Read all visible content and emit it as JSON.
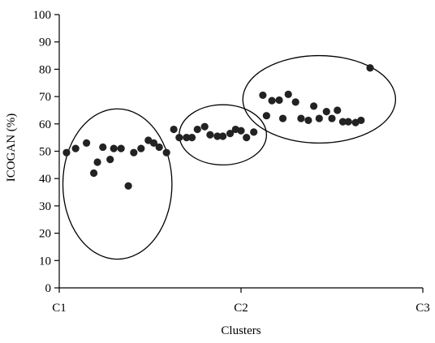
{
  "chart_data": {
    "type": "scatter",
    "title": "",
    "xlabel": "Clusters",
    "ylabel": "ICOGAN (%)",
    "ylim": [
      0,
      100
    ],
    "yticks": [
      0,
      10,
      20,
      30,
      40,
      50,
      60,
      70,
      80,
      90,
      100
    ],
    "xticks": [
      "C1",
      "C2",
      "C3"
    ],
    "xlim": [
      1,
      3
    ],
    "grid": false,
    "marker_color": "#222222",
    "series": [
      {
        "points": [
          {
            "x": 1.04,
            "y": 49.5
          },
          {
            "x": 1.09,
            "y": 51
          },
          {
            "x": 1.15,
            "y": 53
          },
          {
            "x": 1.19,
            "y": 42
          },
          {
            "x": 1.21,
            "y": 46
          },
          {
            "x": 1.24,
            "y": 51.5
          },
          {
            "x": 1.28,
            "y": 47
          },
          {
            "x": 1.3,
            "y": 51
          },
          {
            "x": 1.34,
            "y": 51
          },
          {
            "x": 1.38,
            "y": 37.3
          },
          {
            "x": 1.41,
            "y": 49.5
          },
          {
            "x": 1.45,
            "y": 51
          },
          {
            "x": 1.49,
            "y": 54
          },
          {
            "x": 1.52,
            "y": 53
          },
          {
            "x": 1.55,
            "y": 51.5
          },
          {
            "x": 1.59,
            "y": 49.5
          },
          {
            "x": 1.63,
            "y": 58
          },
          {
            "x": 1.66,
            "y": 55
          },
          {
            "x": 1.7,
            "y": 55
          },
          {
            "x": 1.73,
            "y": 55
          },
          {
            "x": 1.76,
            "y": 58
          },
          {
            "x": 1.8,
            "y": 59
          },
          {
            "x": 1.83,
            "y": 56
          },
          {
            "x": 1.87,
            "y": 55.5
          },
          {
            "x": 1.9,
            "y": 55.5
          },
          {
            "x": 1.94,
            "y": 56.5
          },
          {
            "x": 1.97,
            "y": 58
          },
          {
            "x": 2.0,
            "y": 57.5
          },
          {
            "x": 2.03,
            "y": 55
          },
          {
            "x": 2.07,
            "y": 57
          },
          {
            "x": 2.12,
            "y": 70.5
          },
          {
            "x": 2.14,
            "y": 63
          },
          {
            "x": 2.17,
            "y": 68.5
          },
          {
            "x": 2.21,
            "y": 68.7
          },
          {
            "x": 2.23,
            "y": 62
          },
          {
            "x": 2.26,
            "y": 70.8
          },
          {
            "x": 2.3,
            "y": 68
          },
          {
            "x": 2.33,
            "y": 62
          },
          {
            "x": 2.37,
            "y": 61.3
          },
          {
            "x": 2.4,
            "y": 66.5
          },
          {
            "x": 2.43,
            "y": 62
          },
          {
            "x": 2.47,
            "y": 64.5
          },
          {
            "x": 2.5,
            "y": 62
          },
          {
            "x": 2.53,
            "y": 65
          },
          {
            "x": 2.56,
            "y": 60.8
          },
          {
            "x": 2.59,
            "y": 60.8
          },
          {
            "x": 2.63,
            "y": 60.5
          },
          {
            "x": 2.66,
            "y": 61.3
          },
          {
            "x": 2.71,
            "y": 80.5
          }
        ]
      }
    ],
    "cluster_ellipses": [
      {
        "cx": 1.32,
        "cy": 38,
        "rx": 0.3,
        "ry": 27.5
      },
      {
        "cx": 1.9,
        "cy": 56,
        "rx": 0.24,
        "ry": 11
      },
      {
        "cx": 2.43,
        "cy": 69,
        "rx": 0.42,
        "ry": 16
      }
    ]
  }
}
